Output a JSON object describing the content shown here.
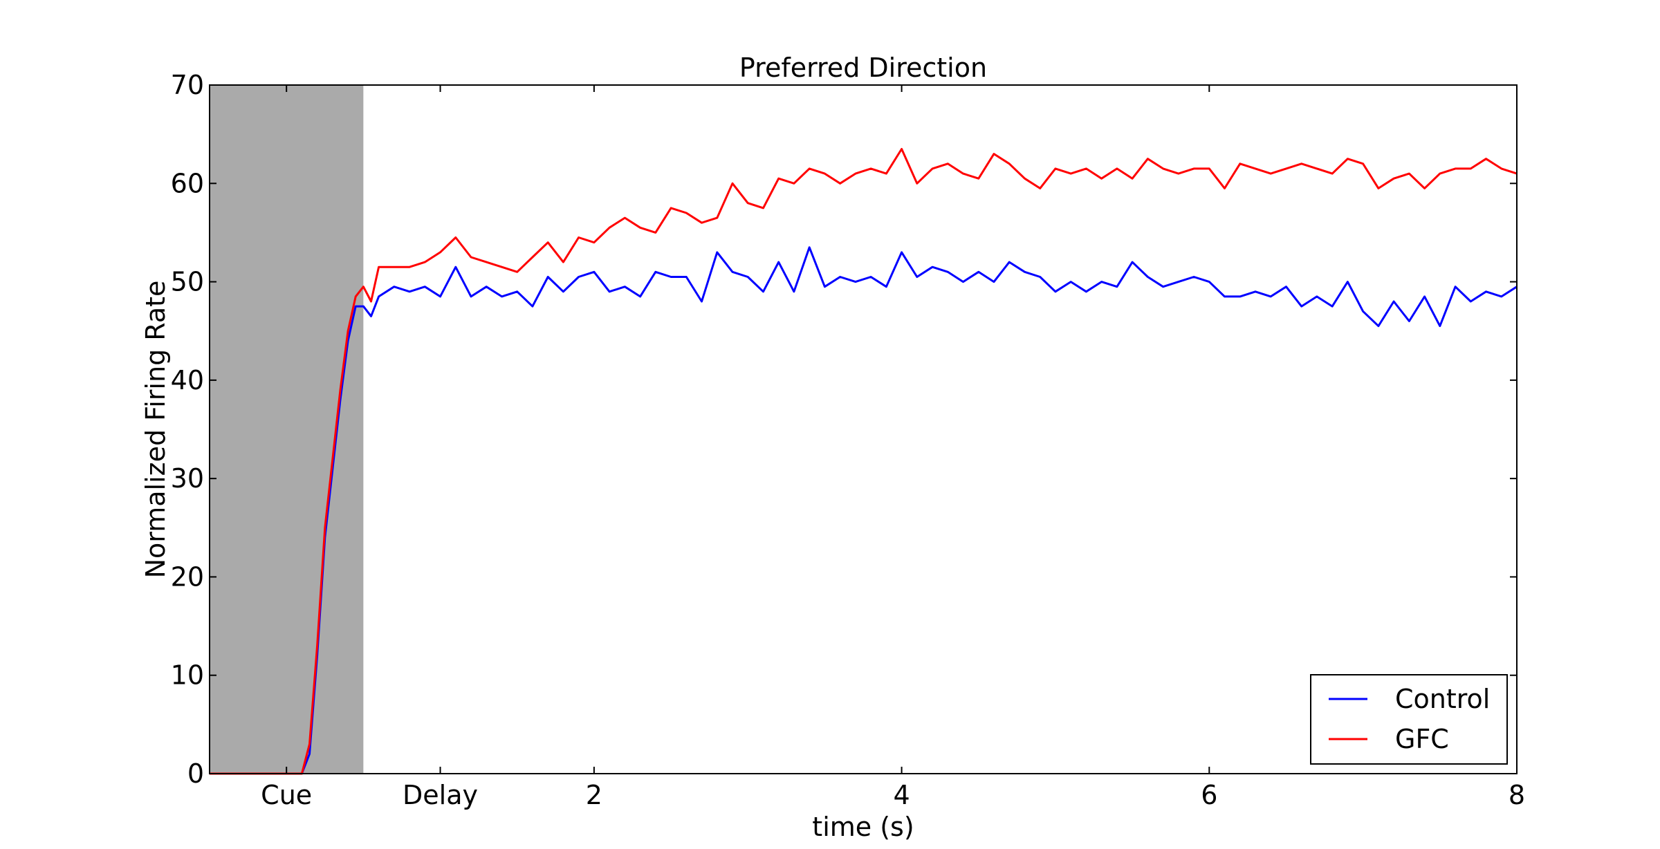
{
  "chart_data": {
    "type": "line",
    "title": "Preferred Direction",
    "xlabel": "time (s)",
    "ylabel": "Normalized Firing Rate",
    "xlim": [
      -0.5,
      8
    ],
    "ylim": [
      0,
      70
    ],
    "x_ticks": [
      {
        "value": 0.0,
        "label": "Cue"
      },
      {
        "value": 1.0,
        "label": "Delay"
      },
      {
        "value": 2,
        "label": "2"
      },
      {
        "value": 4,
        "label": "4"
      },
      {
        "value": 6,
        "label": "6"
      },
      {
        "value": 8,
        "label": "8"
      }
    ],
    "y_ticks": [
      0,
      10,
      20,
      30,
      40,
      50,
      60,
      70
    ],
    "shaded_region": {
      "x_start": -0.5,
      "x_end": 0.5,
      "color": "#aaaaaa"
    },
    "legend_position": "lower-right",
    "grid": false,
    "series": [
      {
        "name": "Control",
        "color": "#0000ff",
        "x": [
          -0.5,
          0.1,
          0.15,
          0.2,
          0.25,
          0.3,
          0.35,
          0.4,
          0.45,
          0.5,
          0.55,
          0.6,
          0.7,
          0.8,
          0.9,
          1.0,
          1.1,
          1.2,
          1.3,
          1.4,
          1.5,
          1.6,
          1.7,
          1.8,
          1.9,
          2.0,
          2.1,
          2.2,
          2.3,
          2.4,
          2.5,
          2.6,
          2.7,
          2.8,
          2.9,
          3.0,
          3.1,
          3.2,
          3.3,
          3.4,
          3.5,
          3.6,
          3.7,
          3.8,
          3.9,
          4.0,
          4.1,
          4.2,
          4.3,
          4.4,
          4.5,
          4.6,
          4.7,
          4.8,
          4.9,
          5.0,
          5.1,
          5.2,
          5.3,
          5.4,
          5.5,
          5.6,
          5.7,
          5.8,
          5.9,
          6.0,
          6.1,
          6.2,
          6.3,
          6.4,
          6.5,
          6.6,
          6.7,
          6.8,
          6.9,
          7.0,
          7.1,
          7.2,
          7.3,
          7.4,
          7.5,
          7.6,
          7.7,
          7.8,
          7.9,
          8.0
        ],
        "y": [
          0,
          0,
          2,
          12,
          24,
          31,
          38,
          44,
          47.5,
          47.5,
          46.5,
          48.5,
          49.5,
          49,
          49.5,
          48.5,
          51.5,
          48.5,
          49.5,
          48.5,
          49,
          47.5,
          50.5,
          49,
          50.5,
          51,
          49,
          49.5,
          48.5,
          51,
          50.5,
          50.5,
          48,
          53,
          51,
          50.5,
          49,
          52,
          49,
          53.5,
          49.5,
          50.5,
          50,
          50.5,
          49.5,
          53,
          50.5,
          51.5,
          51,
          50,
          51,
          50,
          52,
          51,
          50.5,
          49,
          50,
          49,
          50,
          49.5,
          52,
          50.5,
          49.5,
          50,
          50.5,
          50,
          48.5,
          48.5,
          49,
          48.5,
          49.5,
          47.5,
          48.5,
          47.5,
          50,
          47,
          45.5,
          48,
          46,
          48.5,
          45.5,
          49.5,
          48,
          49,
          48.5,
          49.5
        ]
      },
      {
        "name": "GFC",
        "color": "#ff0000",
        "x": [
          -0.5,
          0.1,
          0.15,
          0.2,
          0.25,
          0.3,
          0.35,
          0.4,
          0.45,
          0.5,
          0.55,
          0.6,
          0.7,
          0.8,
          0.9,
          1.0,
          1.1,
          1.2,
          1.3,
          1.4,
          1.5,
          1.6,
          1.7,
          1.8,
          1.9,
          2.0,
          2.1,
          2.2,
          2.3,
          2.4,
          2.5,
          2.6,
          2.7,
          2.8,
          2.9,
          3.0,
          3.1,
          3.2,
          3.3,
          3.4,
          3.5,
          3.6,
          3.7,
          3.8,
          3.9,
          4.0,
          4.1,
          4.2,
          4.3,
          4.4,
          4.5,
          4.6,
          4.7,
          4.8,
          4.9,
          5.0,
          5.1,
          5.2,
          5.3,
          5.4,
          5.5,
          5.6,
          5.7,
          5.8,
          5.9,
          6.0,
          6.1,
          6.2,
          6.3,
          6.4,
          6.5,
          6.6,
          6.7,
          6.8,
          6.9,
          7.0,
          7.1,
          7.2,
          7.3,
          7.4,
          7.5,
          7.6,
          7.7,
          7.8,
          7.9,
          8.0
        ],
        "y": [
          0,
          0,
          3,
          13,
          25,
          32,
          39,
          45,
          48.5,
          49.5,
          48,
          51.5,
          51.5,
          51.5,
          52,
          53,
          54.5,
          52.5,
          52,
          51.5,
          51,
          52.5,
          54,
          52,
          54.5,
          54,
          55.5,
          56.5,
          55.5,
          55,
          57.5,
          57,
          56,
          56.5,
          60,
          58,
          57.5,
          60.5,
          60,
          61.5,
          61,
          60,
          61,
          61.5,
          61,
          63.5,
          60,
          61.5,
          62,
          61,
          60.5,
          63,
          62,
          60.5,
          59.5,
          61.5,
          61,
          61.5,
          60.5,
          61.5,
          60.5,
          62.5,
          61.5,
          61,
          61.5,
          61.5,
          59.5,
          62,
          61.5,
          61,
          61.5,
          62,
          61.5,
          61,
          62.5,
          62,
          59.5,
          60.5,
          61,
          59.5,
          61,
          61.5,
          61.5,
          62.5,
          61.5,
          61
        ]
      }
    ]
  }
}
